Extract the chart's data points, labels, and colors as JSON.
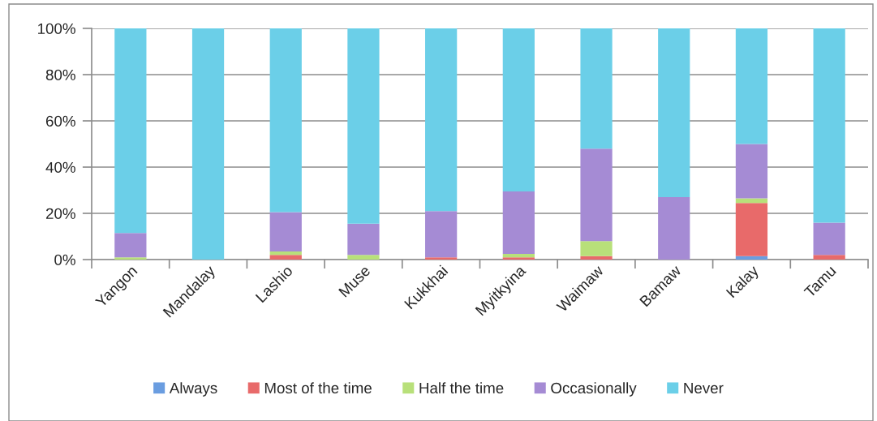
{
  "chart_data": {
    "type": "bar",
    "stacked": true,
    "categories": [
      "Yangon",
      "Mandalay",
      "Lashio",
      "Muse",
      "Kukkhai",
      "Myitkyina",
      "Waimaw",
      "Bamaw",
      "Kalay",
      "Tamu"
    ],
    "series": [
      {
        "name": "Always",
        "color": "#6a9de0",
        "values": [
          0,
          0,
          0,
          0,
          0,
          0,
          0,
          0,
          1.5,
          0
        ]
      },
      {
        "name": "Most of the time",
        "color": "#e86a6a",
        "values": [
          0,
          0,
          2,
          0,
          1,
          1,
          1.5,
          0,
          23,
          2
        ]
      },
      {
        "name": "Half the time",
        "color": "#b8e07a",
        "values": [
          1,
          0,
          1.5,
          2,
          0,
          1.5,
          6.5,
          0,
          2,
          0
        ]
      },
      {
        "name": "Occasionally",
        "color": "#a58bd4",
        "values": [
          10.5,
          0,
          17,
          13.5,
          20,
          27,
          40,
          27,
          23.5,
          14
        ]
      },
      {
        "name": "Never",
        "color": "#6bcfe8",
        "values": [
          88.5,
          100,
          79.5,
          84.5,
          79,
          70.5,
          52,
          73,
          50,
          84
        ]
      }
    ],
    "ylim": [
      0,
      100
    ],
    "yticks": [
      {
        "value": 0,
        "label": "0%"
      },
      {
        "value": 20,
        "label": "20%"
      },
      {
        "value": 40,
        "label": "40%"
      },
      {
        "value": 60,
        "label": "60%"
      },
      {
        "value": 80,
        "label": "80%"
      },
      {
        "value": 100,
        "label": "100%"
      }
    ],
    "grid": "y",
    "legend": "bottom"
  }
}
